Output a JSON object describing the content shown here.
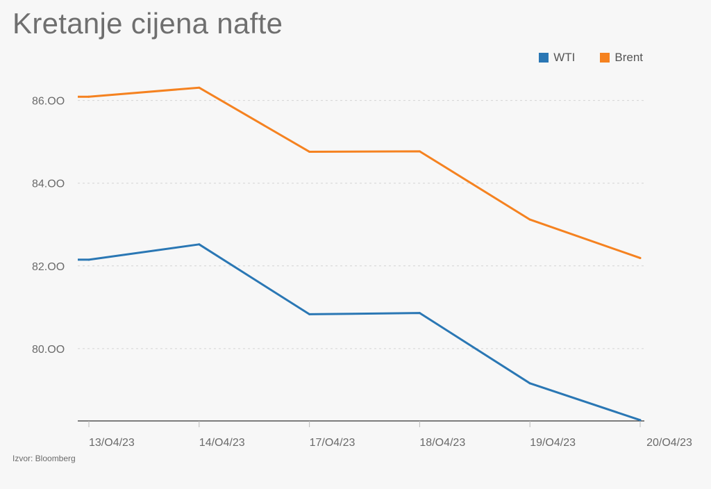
{
  "chart_data": {
    "type": "line",
    "title": "Kretanje cijena nafte",
    "categories": [
      "13/O4/23",
      "14/O4/23",
      "17/O4/23",
      "18/O4/23",
      "19/O4/23",
      "20/O4/23"
    ],
    "series": [
      {
        "name": "WTI",
        "color": "#2a77b4",
        "values": [
          82.15,
          82.52,
          80.83,
          80.86,
          79.16,
          78.27
        ]
      },
      {
        "name": "Brent",
        "color": "#f58220",
        "values": [
          86.09,
          86.31,
          84.76,
          84.77,
          83.12,
          82.19
        ]
      }
    ],
    "yticks": [
      "80.OO",
      "82.OO",
      "84.OO",
      "86.OO"
    ],
    "ytick_values": [
      80,
      82,
      84,
      86
    ],
    "ylim": [
      78.25,
      86.75
    ],
    "xlabel": "",
    "ylabel": "",
    "grid": true,
    "legend_position": "top-right"
  },
  "source": "Izvor: Bloomberg"
}
